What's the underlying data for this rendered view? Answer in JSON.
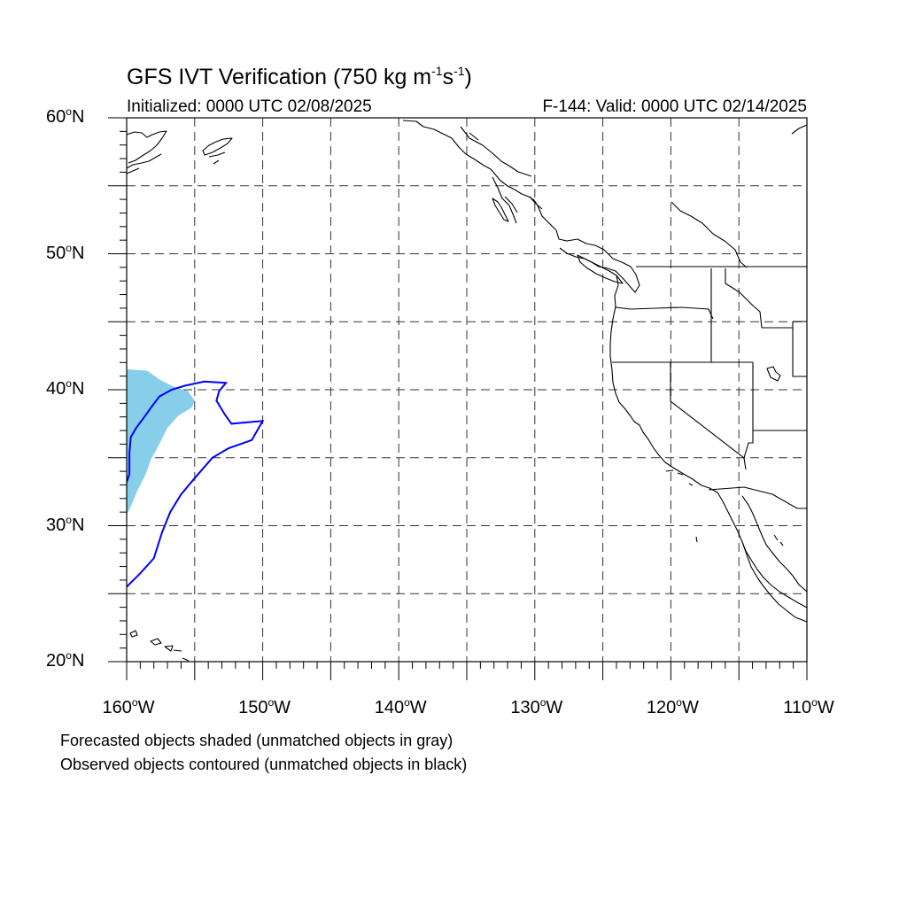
{
  "title": {
    "main": "GFS IVT Verification (750 kg m",
    "exp1": "-1",
    "mid": "s",
    "exp2": "-1",
    "end": ")"
  },
  "subtitle_left": "Initialized: 0000 UTC 02/08/2025",
  "subtitle_right": "F-144: Valid: 0000 UTC 02/14/2025",
  "degree_symbol": "o",
  "lat_labels": [
    {
      "num": "60",
      "hem": "N"
    },
    {
      "num": "50",
      "hem": "N"
    },
    {
      "num": "40",
      "hem": "N"
    },
    {
      "num": "30",
      "hem": "N"
    },
    {
      "num": "20",
      "hem": "N"
    }
  ],
  "lon_labels": [
    {
      "num": "160",
      "hem": "W"
    },
    {
      "num": "150",
      "hem": "W"
    },
    {
      "num": "140",
      "hem": "W"
    },
    {
      "num": "130",
      "hem": "W"
    },
    {
      "num": "120",
      "hem": "W"
    },
    {
      "num": "110",
      "hem": "W"
    }
  ],
  "notes": [
    "Forecasted objects shaded (unmatched objects in gray)",
    "Observed objects contoured (unmatched objects in black)"
  ],
  "map": {
    "extent": {
      "lon": [
        -160,
        -110
      ],
      "lat": [
        20,
        60
      ]
    },
    "gridlines": "dashed every 5 degrees",
    "forecast_object": {
      "color": "#87ceeb",
      "outline": [
        [
          -160,
          41.5
        ],
        [
          -158.5,
          41.4
        ],
        [
          -157.5,
          40.7
        ],
        [
          -156.5,
          40.2
        ],
        [
          -155.5,
          39.9
        ],
        [
          -155,
          39.2
        ],
        [
          -155.2,
          38.7
        ],
        [
          -156.2,
          38.1
        ],
        [
          -157,
          37.2
        ],
        [
          -157.7,
          35.8
        ],
        [
          -158.2,
          34.9
        ],
        [
          -158.6,
          33.8
        ],
        [
          -159.2,
          32.6
        ],
        [
          -159.8,
          31.2
        ],
        [
          -160,
          30.8
        ]
      ]
    },
    "observed_object": {
      "color": "#0000ff",
      "outline": [
        [
          -160,
          25.5
        ],
        [
          -159,
          26.5
        ],
        [
          -158,
          27.6
        ],
        [
          -157.4,
          29.5
        ],
        [
          -156.8,
          31
        ],
        [
          -156,
          32.3
        ],
        [
          -155,
          33.5
        ],
        [
          -153.7,
          35
        ],
        [
          -152.5,
          35.7
        ],
        [
          -150.8,
          36.3
        ],
        [
          -150,
          37.7
        ],
        [
          -151.1,
          37.6
        ],
        [
          -152.3,
          37.5
        ],
        [
          -152.8,
          38.2
        ],
        [
          -153.4,
          39.2
        ],
        [
          -153.2,
          39.9
        ],
        [
          -152.7,
          40.5
        ],
        [
          -154.3,
          40.6
        ],
        [
          -155.7,
          40.3
        ],
        [
          -156.7,
          40
        ],
        [
          -157.6,
          39.5
        ],
        [
          -158.2,
          38.7
        ],
        [
          -158.7,
          38
        ],
        [
          -159.3,
          37.2
        ],
        [
          -159.7,
          36.5
        ],
        [
          -159.8,
          35.3
        ],
        [
          -159.8,
          33.8
        ],
        [
          -160,
          33.2
        ]
      ]
    },
    "line_color": "#000000",
    "background": "#ffffff"
  }
}
